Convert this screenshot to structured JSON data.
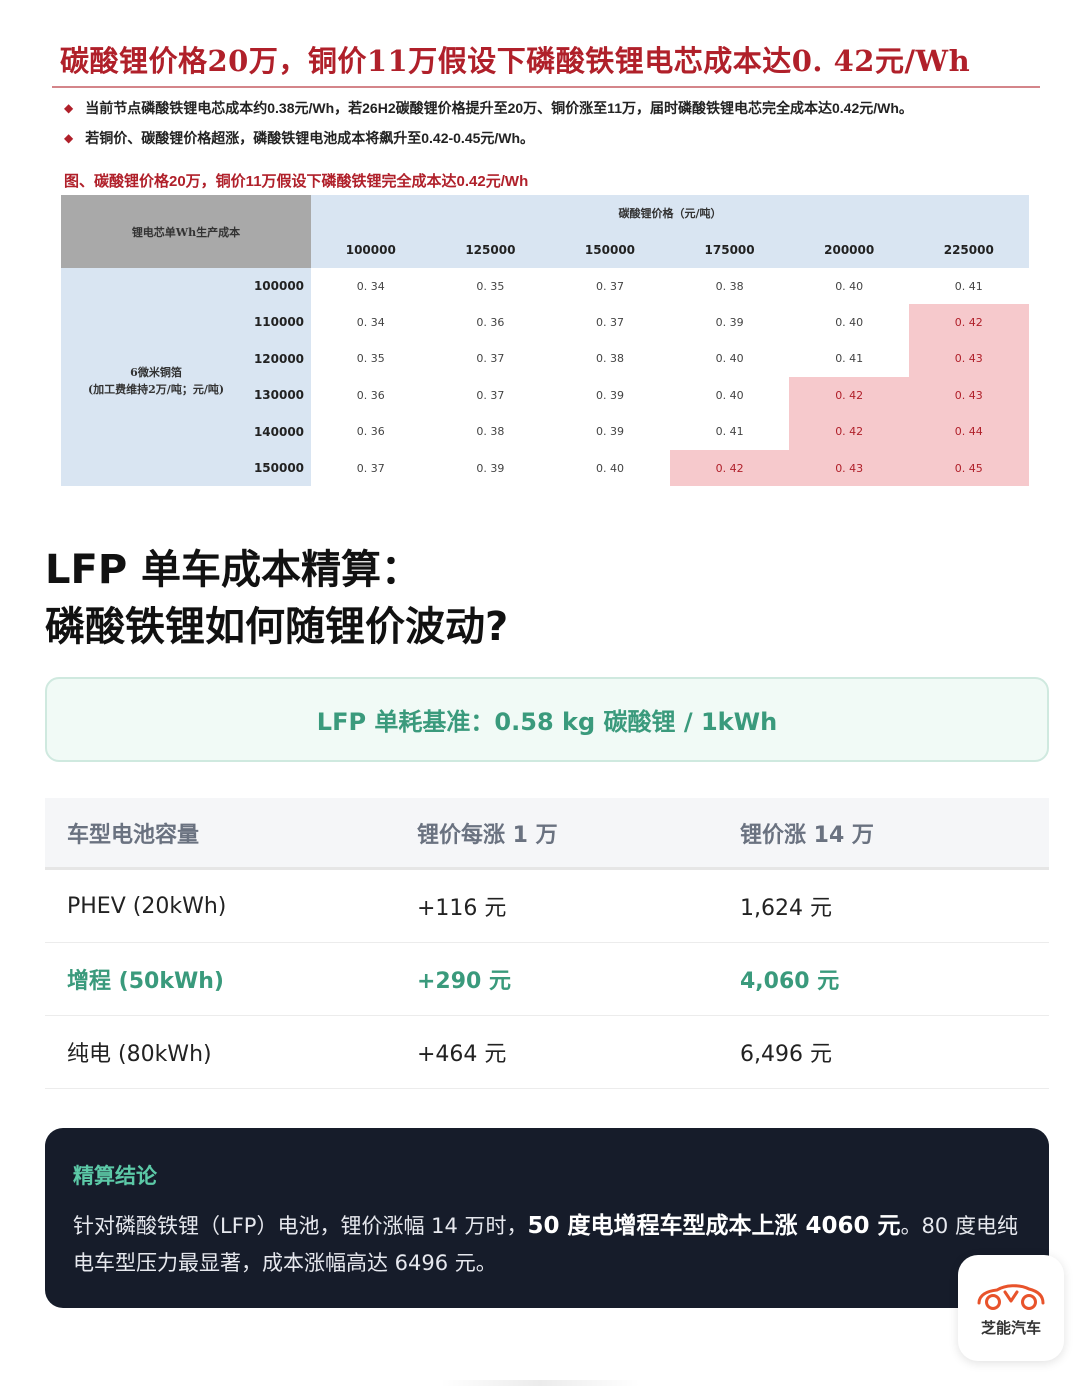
{
  "report": {
    "title": "碳酸锂价格20万，铜价11万假设下磷酸铁锂电芯成本达0. 42元/Wh",
    "bullets": [
      "当前节点磷酸铁锂电芯成本约0.38元/Wh，若26H2碳酸锂价格提升至20万、铜价涨至11万，届时磷酸铁锂电芯完全成本达0.42元/Wh。",
      "若铜价、碳酸锂价格超涨，磷酸铁锂电池成本将飙升至0.42-0.45元/Wh。"
    ],
    "figure_caption": "图、碳酸锂价格20万，铜价11万假设下磷酸铁锂完全成本达0.42元/Wh",
    "table": {
      "corner_label": "锂电芯单Wh生产成本",
      "col_group_label": "碳酸锂价格（元/吨）",
      "col_heads": [
        "100000",
        "125000",
        "150000",
        "175000",
        "200000",
        "225000"
      ],
      "row_group_label_1": "6微米铜箔",
      "row_group_label_2": "(加工费维持2万/吨；元/吨)",
      "row_heads": [
        "100000",
        "110000",
        "120000",
        "130000",
        "140000",
        "150000"
      ],
      "cells": [
        [
          "0. 34",
          "0. 35",
          "0. 37",
          "0. 38",
          "0. 40",
          "0. 41"
        ],
        [
          "0. 34",
          "0. 36",
          "0. 37",
          "0. 39",
          "0. 40",
          "0. 42"
        ],
        [
          "0. 35",
          "0. 37",
          "0. 38",
          "0. 40",
          "0. 41",
          "0. 43"
        ],
        [
          "0. 36",
          "0. 37",
          "0. 39",
          "0. 40",
          "0. 42",
          "0. 43"
        ],
        [
          "0. 36",
          "0. 38",
          "0. 39",
          "0. 41",
          "0. 42",
          "0. 44"
        ],
        [
          "0. 37",
          "0. 39",
          "0. 40",
          "0. 42",
          "0. 43",
          "0. 45"
        ]
      ],
      "highlight_color": "#f6c9cc"
    }
  },
  "headline": {
    "line1": "LFP 单车成本精算：",
    "line2": "磷酸铁锂如何随锂价波动?"
  },
  "baseline": {
    "text": "LFP 单耗基准：0.58 kg 碳酸锂 / 1kWh"
  },
  "comparison": {
    "headers": [
      "车型电池容量",
      "锂价每涨 1 万",
      "锂价涨 14 万"
    ],
    "rows": [
      [
        "PHEV (20kWh)",
        "+116 元",
        "1,624 元"
      ],
      [
        "增程 (50kWh)",
        "+290 元",
        "4,060 元"
      ],
      [
        "纯电 (80kWh)",
        "+464 元",
        "6,496 元"
      ]
    ],
    "accent_color": "#3a9a7c"
  },
  "conclusion": {
    "title": "精算结论",
    "text_a": "针对磷酸铁锂（LFP）电池，锂价涨幅 14 万时，",
    "text_bold": "50 度电增程车型成本上涨 4060 元",
    "text_b": "。80 度电纯电车型压力最显著，成本涨幅高达 6496 元。"
  },
  "logo": {
    "name": "芝能汽车",
    "icon": "car-outline-icon",
    "color": "#e8532b"
  }
}
